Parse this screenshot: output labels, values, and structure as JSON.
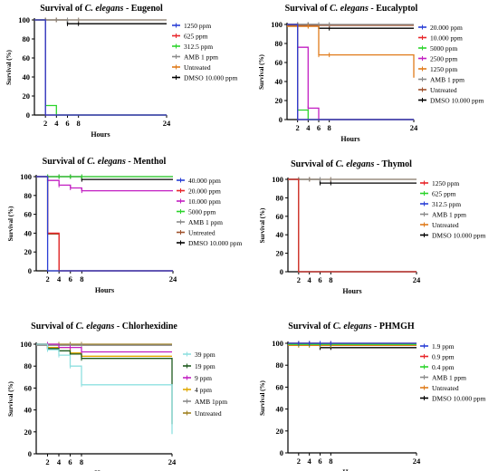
{
  "chart_data": [
    {
      "type": "line",
      "title_prefix": "Survival of ",
      "title_italic": "C. elegans",
      "title_suffix": " - Eugenol",
      "xlabel": "Hours",
      "ylabel": "Survival (%)",
      "xticks": [
        2,
        4,
        6,
        8,
        24
      ],
      "yticks": [
        0,
        20,
        40,
        60,
        80,
        100
      ],
      "xlim": [
        0,
        24
      ],
      "ylim": [
        0,
        100
      ],
      "series": [
        {
          "name": "1250 ppm",
          "color": "#2a3fd6",
          "x": [
            0,
            2,
            2,
            24
          ],
          "y": [
            100,
            100,
            0,
            0
          ]
        },
        {
          "name": "625 ppm",
          "color": "#e8262a",
          "x": [
            0,
            2,
            2,
            24
          ],
          "y": [
            100,
            100,
            0,
            0
          ]
        },
        {
          "name": "312.5 ppm",
          "color": "#2bd42b",
          "x": [
            0,
            2,
            2,
            4,
            4,
            24
          ],
          "y": [
            100,
            100,
            10,
            10,
            0,
            0
          ]
        },
        {
          "name": "AMB 1 ppm",
          "color": "#8a8a8a",
          "x": [
            0,
            24
          ],
          "y": [
            100,
            100
          ]
        },
        {
          "name": "Untreated",
          "color": "#e07b1a",
          "x": [
            0,
            24
          ],
          "y": [
            100,
            100
          ]
        },
        {
          "name": "DMSO 10.000 ppm",
          "color": "#000000",
          "x": [
            0,
            6,
            6,
            24
          ],
          "y": [
            100,
            100,
            96,
            96
          ]
        }
      ]
    },
    {
      "type": "line",
      "title_prefix": "Survival of ",
      "title_italic": "C. elegans",
      "title_suffix": " - Eucalyptol",
      "xlabel": "Hours",
      "ylabel": "Survival (%)",
      "xticks": [
        2,
        4,
        6,
        8,
        24
      ],
      "yticks": [
        0,
        20,
        40,
        60,
        80,
        100
      ],
      "xlim": [
        0,
        24
      ],
      "ylim": [
        0,
        100
      ],
      "series": [
        {
          "name": "20.000 ppm",
          "color": "#2a3fd6",
          "x": [
            0,
            2,
            2,
            24
          ],
          "y": [
            100,
            100,
            0,
            0
          ]
        },
        {
          "name": "10.000 ppm",
          "color": "#e8262a",
          "x": [
            0,
            2,
            2,
            24
          ],
          "y": [
            100,
            100,
            0,
            0
          ]
        },
        {
          "name": "5000 ppm",
          "color": "#2bd42b",
          "x": [
            0,
            2,
            2,
            4,
            4,
            24
          ],
          "y": [
            100,
            100,
            10,
            10,
            0,
            0
          ]
        },
        {
          "name": "2500 ppm",
          "color": "#c21fc2",
          "x": [
            0,
            2,
            2,
            4,
            4,
            6,
            6,
            24
          ],
          "y": [
            100,
            100,
            76,
            76,
            12,
            12,
            0,
            0
          ]
        },
        {
          "name": "1250 ppm",
          "color": "#e07b1a",
          "x": [
            0,
            6,
            6,
            24,
            24
          ],
          "y": [
            98,
            98,
            68,
            68,
            44
          ]
        },
        {
          "name": "AMB 1 ppm",
          "color": "#8a8a8a",
          "x": [
            0,
            24
          ],
          "y": [
            100,
            100
          ]
        },
        {
          "name": "Untreated",
          "color": "#a0522d",
          "x": [
            0,
            24
          ],
          "y": [
            99,
            99
          ]
        },
        {
          "name": "DMSO 10.000 ppm",
          "color": "#000000",
          "x": [
            0,
            6,
            6,
            24
          ],
          "y": [
            100,
            100,
            96,
            96
          ]
        }
      ]
    },
    {
      "type": "line",
      "title_prefix": "Survival of ",
      "title_italic": "C. elegans",
      "title_suffix": " - Menthol",
      "xlabel": "Hours",
      "ylabel": "Survival (%)",
      "xticks": [
        2,
        4,
        6,
        8,
        24
      ],
      "yticks": [
        0,
        20,
        40,
        60,
        80,
        100
      ],
      "xlim": [
        0,
        24
      ],
      "ylim": [
        0,
        100
      ],
      "series": [
        {
          "name": "40.000 ppm",
          "color": "#2a3fd6",
          "x": [
            0,
            2,
            2,
            24
          ],
          "y": [
            100,
            100,
            0,
            0
          ]
        },
        {
          "name": "20.000 ppm",
          "color": "#e8262a",
          "x": [
            0,
            2,
            2,
            4,
            4,
            24
          ],
          "y": [
            100,
            100,
            40,
            40,
            0,
            0
          ]
        },
        {
          "name": "10.000 ppm",
          "color": "#c21fc2",
          "x": [
            0,
            2,
            2,
            4,
            4,
            6,
            6,
            8,
            8,
            24
          ],
          "y": [
            100,
            100,
            96,
            96,
            91,
            91,
            88,
            88,
            85,
            85
          ]
        },
        {
          "name": "5000 ppm",
          "color": "#2bd42b",
          "x": [
            0,
            24
          ],
          "y": [
            100,
            100
          ]
        },
        {
          "name": "AMB 1 ppm",
          "color": "#8a8a8a",
          "x": [
            0,
            24
          ],
          "y": [
            100,
            100
          ]
        },
        {
          "name": "Untreated",
          "color": "#a0522d",
          "x": [
            0,
            2,
            2,
            4,
            4,
            24
          ],
          "y": [
            100,
            100,
            39,
            39,
            0,
            0
          ]
        },
        {
          "name": "DMSO 10.000 ppm",
          "color": "#000000",
          "x": [
            0,
            8,
            8,
            24
          ],
          "y": [
            100,
            100,
            97,
            97
          ]
        }
      ]
    },
    {
      "type": "line",
      "title_prefix": "Survival of ",
      "title_italic": "C. elegans",
      "title_suffix": " - Thymol",
      "xlabel": "Hours",
      "ylabel": "Survival (%)",
      "xticks": [
        2,
        4,
        6,
        8,
        24
      ],
      "yticks": [
        0,
        20,
        40,
        60,
        80,
        100
      ],
      "xlim": [
        0,
        24
      ],
      "ylim": [
        0,
        100
      ],
      "series": [
        {
          "name": "1250 ppm",
          "color": "#e8262a",
          "x": [
            0,
            2,
            2,
            24
          ],
          "y": [
            100,
            100,
            0,
            0
          ]
        },
        {
          "name": "625 ppm",
          "color": "#2bd42b",
          "x": [
            0,
            2,
            2,
            24
          ],
          "y": [
            100,
            100,
            0,
            0
          ]
        },
        {
          "name": "312.5 ppm",
          "color": "#2a3fd6",
          "x": [
            0,
            2,
            2,
            24
          ],
          "y": [
            100,
            100,
            0,
            0
          ]
        },
        {
          "name": "AMB 1 ppm",
          "color": "#8a8a8a",
          "x": [
            0,
            24
          ],
          "y": [
            100,
            100
          ]
        },
        {
          "name": "Untreated",
          "color": "#e07b1a",
          "x": [
            0,
            24
          ],
          "y": [
            100,
            100
          ]
        },
        {
          "name": "DMSO 10.000 ppm",
          "color": "#000000",
          "x": [
            0,
            6,
            6,
            24
          ],
          "y": [
            100,
            100,
            96,
            96
          ]
        }
      ]
    },
    {
      "type": "line",
      "title_prefix": "Survival of ",
      "title_italic": "C. elegans",
      "title_suffix": " - Chlorhexidine",
      "xlabel": "Hours",
      "ylabel": "Survival (%)",
      "xticks": [
        2,
        4,
        6,
        8,
        24
      ],
      "yticks": [
        0,
        20,
        40,
        60,
        80,
        100
      ],
      "xlim": [
        0,
        24
      ],
      "ylim": [
        0,
        100
      ],
      "series": [
        {
          "name": "39 ppm",
          "color": "#8fe0e0",
          "x": [
            0,
            2,
            2,
            4,
            4,
            6,
            6,
            8,
            8,
            24,
            24
          ],
          "y": [
            100,
            100,
            95,
            95,
            90,
            90,
            80,
            80,
            63,
            63,
            18
          ]
        },
        {
          "name": "19 ppm",
          "color": "#1e5a1e",
          "x": [
            0,
            2,
            2,
            4,
            4,
            6,
            6,
            8,
            8,
            24,
            24
          ],
          "y": [
            100,
            100,
            96,
            96,
            94,
            94,
            91,
            91,
            87,
            87,
            27
          ]
        },
        {
          "name": "9 ppm",
          "color": "#c21fc2",
          "x": [
            0,
            4,
            4,
            8,
            8,
            24
          ],
          "y": [
            100,
            100,
            97,
            97,
            93,
            93
          ]
        },
        {
          "name": "4 ppm",
          "color": "#e0a800",
          "x": [
            0,
            2,
            2,
            6,
            6,
            8,
            8,
            24
          ],
          "y": [
            100,
            100,
            97,
            97,
            92,
            92,
            89,
            89
          ]
        },
        {
          "name": "AMB 1ppm",
          "color": "#8a8a8a",
          "x": [
            0,
            24
          ],
          "y": [
            99,
            99
          ]
        },
        {
          "name": "Untreated",
          "color": "#a08020",
          "x": [
            0,
            24
          ],
          "y": [
            100,
            100
          ]
        }
      ]
    },
    {
      "type": "line",
      "title_prefix": "Survival of ",
      "title_italic": "C. elegans",
      "title_suffix": " - PHMGH",
      "xlabel": "Hours",
      "ylabel": "Survival (%)",
      "xticks": [
        2,
        4,
        6,
        8,
        24
      ],
      "yticks": [
        0,
        20,
        40,
        60,
        80,
        100
      ],
      "xlim": [
        0,
        24
      ],
      "ylim": [
        0,
        100
      ],
      "series": [
        {
          "name": "1.9 ppm",
          "color": "#2a3fd6",
          "x": [
            0,
            24
          ],
          "y": [
            100,
            100
          ]
        },
        {
          "name": "0.9 ppm",
          "color": "#e8262a",
          "x": [
            0,
            24
          ],
          "y": [
            100,
            100
          ]
        },
        {
          "name": "0.4 ppm",
          "color": "#2bd42b",
          "x": [
            0,
            24
          ],
          "y": [
            99,
            99
          ]
        },
        {
          "name": "AMB 1 ppm",
          "color": "#8a8a8a",
          "x": [
            0,
            24
          ],
          "y": [
            100,
            100
          ]
        },
        {
          "name": "Untreated",
          "color": "#e07b1a",
          "x": [
            0,
            24
          ],
          "y": [
            98,
            98
          ]
        },
        {
          "name": "DMSO 10.000 ppm",
          "color": "#000000",
          "x": [
            0,
            6,
            6,
            24
          ],
          "y": [
            100,
            100,
            96,
            96
          ]
        }
      ]
    }
  ]
}
